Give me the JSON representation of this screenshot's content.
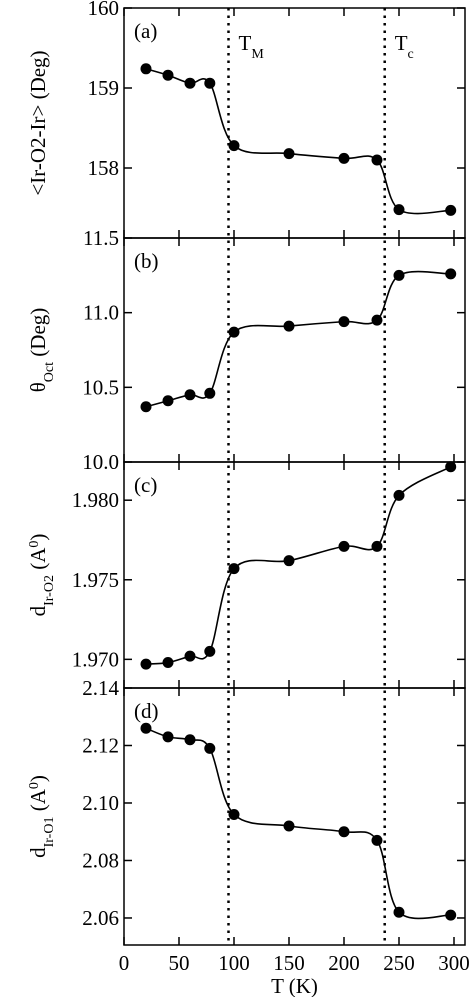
{
  "chart_data": [
    {
      "type": "scatter",
      "panel_label": "(a)",
      "ylabel": [
        {
          "text": "<Ir-O2-Ir> (Deg)"
        }
      ],
      "x": [
        20,
        40,
        60,
        78,
        100,
        150,
        200,
        230,
        250,
        297
      ],
      "series": [
        {
          "color": "#000000",
          "values": [
            159.24,
            159.16,
            159.06,
            159.06,
            158.28,
            158.18,
            158.12,
            158.1,
            157.48,
            157.47
          ]
        }
      ],
      "xlim": [
        0,
        310
      ],
      "ylim": [
        157.125,
        160
      ],
      "yticks": [
        158,
        159,
        160
      ],
      "annotations": [
        {
          "x": 95,
          "text": "T",
          "sub": "M"
        },
        {
          "x": 237,
          "text": "T",
          "sub": "c"
        }
      ]
    },
    {
      "type": "scatter",
      "panel_label": "(b)",
      "ylabel": [
        {
          "text": "θ"
        },
        {
          "text": "Oct",
          "shift": "sub"
        },
        {
          "text": " (Deg)"
        }
      ],
      "x": [
        20,
        40,
        60,
        78,
        100,
        150,
        200,
        230,
        250,
        297
      ],
      "series": [
        {
          "color": "#000000",
          "values": [
            10.37,
            10.41,
            10.45,
            10.46,
            10.87,
            10.91,
            10.94,
            10.95,
            11.25,
            11.26
          ]
        }
      ],
      "xlim": [
        0,
        310
      ],
      "ylim": [
        10,
        11.5
      ],
      "yticks": [
        {
          "value": 10,
          "label": "10.0"
        },
        10.5,
        {
          "value": 11,
          "label": "11.0"
        },
        11.5
      ]
    },
    {
      "type": "scatter",
      "panel_label": "(c)",
      "ylabel": [
        {
          "text": "d"
        },
        {
          "text": "Ir-O2",
          "shift": "sub"
        },
        {
          "text": " (A"
        },
        {
          "text": "0",
          "shift": "super"
        },
        {
          "text": ")"
        }
      ],
      "x": [
        20,
        40,
        60,
        78,
        100,
        150,
        200,
        230,
        250,
        297
      ],
      "series": [
        {
          "color": "#000000",
          "values": [
            1.9697,
            1.9698,
            1.9702,
            1.9705,
            1.9757,
            1.9762,
            1.9771,
            1.9771,
            1.9803,
            1.9821
          ]
        }
      ],
      "xlim": [
        0,
        310
      ],
      "ylim": [
        1.9682,
        1.9824
      ],
      "yticks": [
        {
          "value": 1.97,
          "label": "1.970"
        },
        1.975,
        {
          "value": 1.98,
          "label": "1.980"
        }
      ]
    },
    {
      "type": "scatter",
      "panel_label": "(d)",
      "ylabel": [
        {
          "text": "d"
        },
        {
          "text": "Ir-O1",
          "shift": "sub"
        },
        {
          "text": " (A"
        },
        {
          "text": "0",
          "shift": "super"
        },
        {
          "text": ")"
        }
      ],
      "x": [
        20,
        40,
        60,
        78,
        100,
        150,
        200,
        230,
        250,
        297
      ],
      "series": [
        {
          "color": "#000000",
          "values": [
            2.126,
            2.123,
            2.122,
            2.119,
            2.096,
            2.092,
            2.09,
            2.087,
            2.062,
            2.061
          ]
        }
      ],
      "xlim": [
        0,
        310
      ],
      "ylim": [
        2.0506,
        2.14
      ],
      "yticks": [
        2.06,
        2.08,
        {
          "value": 2.1,
          "label": "2.10"
        },
        2.12,
        2.14
      ],
      "xticks": [
        0,
        50,
        100,
        150,
        200,
        250,
        300
      ],
      "xlabel": "T (K)"
    }
  ]
}
